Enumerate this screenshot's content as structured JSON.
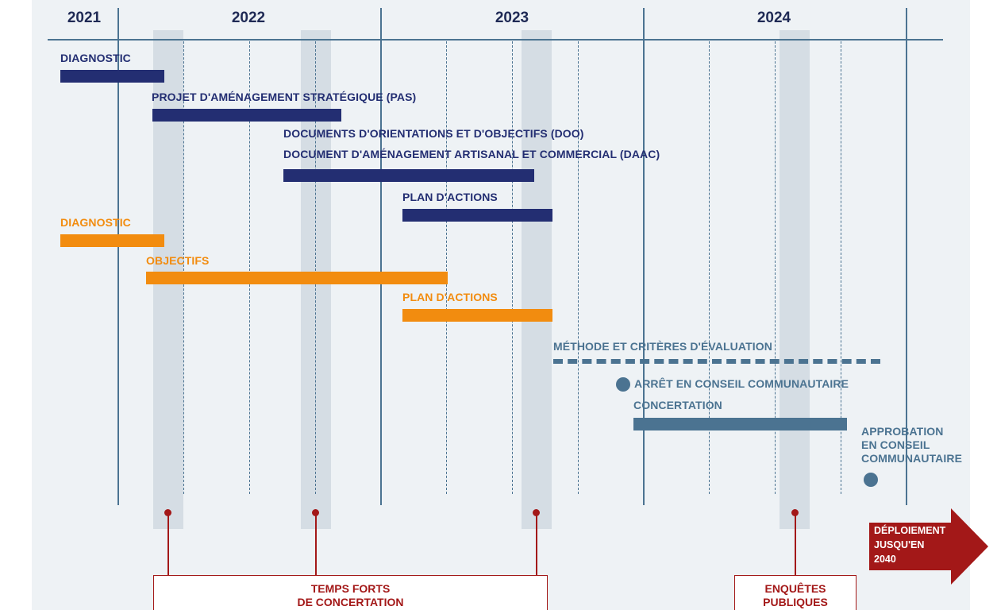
{
  "years": [
    "2021",
    "2022",
    "2023",
    "2024"
  ],
  "tracks": {
    "navy": [
      {
        "label": "DIAGNOSTIC"
      },
      {
        "label": "PROJET D'AMÉNAGEMENT STRATÉGIQUE (PAS)"
      },
      {
        "label_line1": "DOCUMENTS D'ORIENTATIONS ET D'OBJECTIFS (DOO)",
        "label_line2": "DOCUMENT D'AMÉNAGEMENT ARTISANAL ET COMMERCIAL (DAAC)"
      },
      {
        "label": "PLAN D'ACTIONS"
      }
    ],
    "orange": [
      {
        "label": "DIAGNOSTIC"
      },
      {
        "label": "OBJECTIFS"
      },
      {
        "label": "PLAN D'ACTIONS"
      }
    ],
    "steel": {
      "evaluation": "MÉTHODE ET CRITÈRES D'ÉVALUATION",
      "arret": "ARRÊT EN CONSEIL COMMUNAUTAIRE",
      "concertation": "CONCERTATION",
      "approbation_line1": "APPROBATION",
      "approbation_line2": "EN CONSEIL",
      "approbation_line3": "COMMUNAUTAIRE"
    }
  },
  "callouts": {
    "temps_forts_line1": "TEMPS FORTS",
    "temps_forts_line2": "DE CONCERTATION",
    "enquetes_line1": "ENQUÊTES",
    "enquetes_line2": "PUBLIQUES"
  },
  "deploiement": {
    "line1": "DÉPLOIEMENT",
    "line2": "JUSQU'EN",
    "line3": "2040"
  },
  "colors": {
    "navy": "#232e72",
    "orange": "#f28c0f",
    "steel": "#4b7391",
    "red": "#a31818",
    "background": "#eef2f5"
  }
}
